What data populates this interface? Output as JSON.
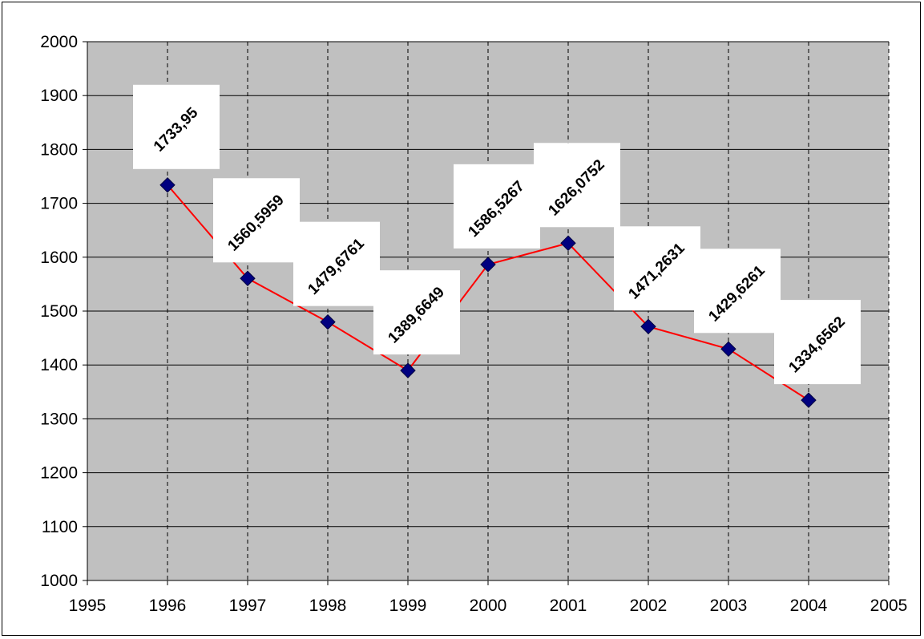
{
  "chart_data": {
    "type": "scatter",
    "title": "",
    "xlabel": "",
    "ylabel": "",
    "xlim": [
      1995,
      2005
    ],
    "ylim": [
      1000,
      2000
    ],
    "x_ticks": [
      1995,
      1996,
      1997,
      1998,
      1999,
      2000,
      2001,
      2002,
      2003,
      2004,
      2005
    ],
    "y_ticks": [
      1000,
      1100,
      1200,
      1300,
      1400,
      1500,
      1600,
      1700,
      1800,
      1900,
      2000
    ],
    "x_grid": "dashed vertical",
    "y_grid": "solid horizontal",
    "legend": "none",
    "plot_background": "#c0c0c0",
    "line_color": "#ff0000",
    "marker": "diamond",
    "marker_color": "#000080",
    "series": [
      {
        "x": [
          1996,
          1997,
          1998,
          1999,
          2000,
          2001,
          2002,
          2003,
          2004
        ],
        "y": [
          1733.95,
          1560.5959,
          1479.6761,
          1389.6649,
          1586.5267,
          1626.0752,
          1471.2631,
          1429.6261,
          1334.6562
        ],
        "labels": [
          "1733,95",
          "1560,5959",
          "1479,6761",
          "1389,6649",
          "1586,5267",
          "1626,0752",
          "1471,2631",
          "1429,6261",
          "1334,6562"
        ]
      }
    ]
  }
}
